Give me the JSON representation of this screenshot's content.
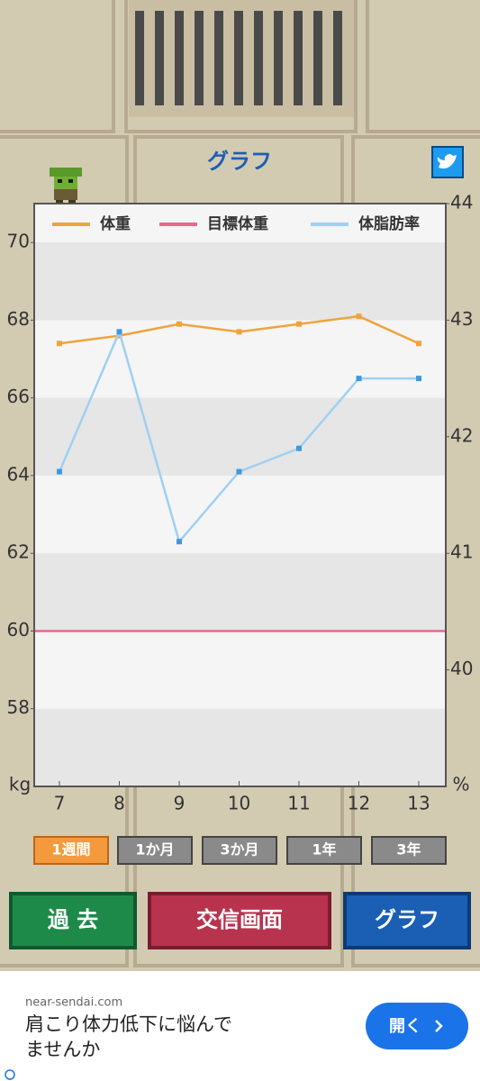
{
  "header": {
    "title": "グラフ"
  },
  "chart_data": {
    "type": "line",
    "categories": [
      "7",
      "8",
      "9",
      "10",
      "11",
      "12",
      "13"
    ],
    "series": [
      {
        "name": "体重",
        "color": "#f0a33c",
        "values": [
          67.4,
          67.6,
          67.9,
          67.7,
          67.9,
          68.1,
          67.4
        ]
      },
      {
        "name": "目標体重",
        "color": "#e8678a",
        "values": [
          60,
          60,
          60,
          60,
          60,
          60,
          60
        ]
      },
      {
        "name": "体脂肪率",
        "color": "#9fd0f2",
        "marker_color": "#3d98e0",
        "axis": "y2",
        "values": [
          41.7,
          42.9,
          41.1,
          41.7,
          41.9,
          42.5,
          42.5
        ]
      }
    ],
    "ylim": [
      56,
      71
    ],
    "yticks": [
      58,
      60,
      62,
      64,
      66,
      68,
      70
    ],
    "ylabel": "kg",
    "y2lim": [
      39,
      44
    ],
    "y2ticks": [
      40,
      41,
      42,
      43,
      44
    ],
    "y2label": "%",
    "legend": "top"
  },
  "periods": {
    "options": [
      "1週間",
      "1か月",
      "3か月",
      "1年",
      "3年"
    ],
    "selected": 0
  },
  "nav": [
    "過 去",
    "交信画面",
    "グラフ"
  ],
  "ad": {
    "domain": "near-sendai.com",
    "text_lines": [
      "肩こり体力低下に悩んで",
      "ませんか"
    ],
    "button": "開く"
  }
}
